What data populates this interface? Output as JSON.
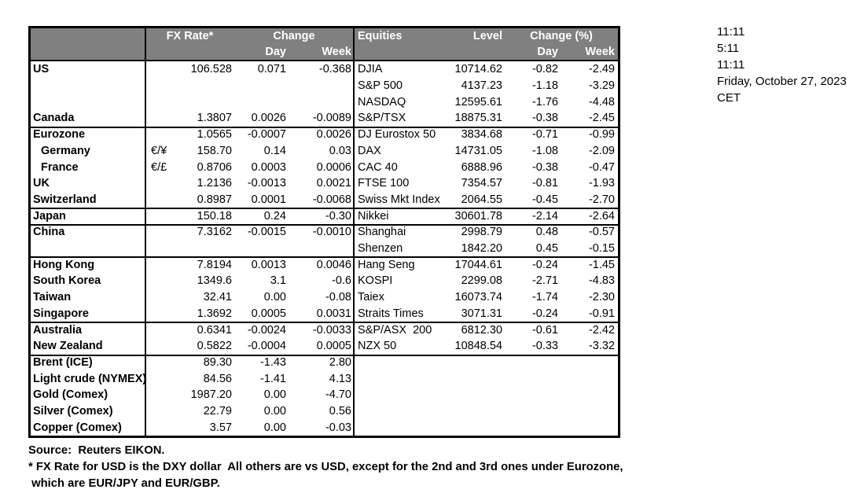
{
  "colors": {
    "header_bg": "#808080",
    "header_text": "#ffffff",
    "border": "#000000",
    "body_bg": "#ffffff"
  },
  "header": {
    "fx_rate": "FX Rate*",
    "change": "Change",
    "day": "Day",
    "week": "Week",
    "equities": "Equities",
    "level": "Level",
    "change_pct": "Change (%)"
  },
  "section_breaks": [
    4,
    9,
    10,
    12,
    16,
    18
  ],
  "rows": [
    {
      "label": "US",
      "indent": false,
      "pair": "",
      "fx": "106.528",
      "day": "0.071",
      "week": "-0.368",
      "equity": "DJIA",
      "level": "10714.62",
      "eq_day": "-0.82",
      "eq_week": "-2.49"
    },
    {
      "label": "",
      "indent": false,
      "pair": "",
      "fx": "",
      "day": "",
      "week": "",
      "equity": "S&P 500",
      "level": "4137.23",
      "eq_day": "-1.18",
      "eq_week": "-3.29"
    },
    {
      "label": "",
      "indent": false,
      "pair": "",
      "fx": "",
      "day": "",
      "week": "",
      "equity": "NASDAQ",
      "level": "12595.61",
      "eq_day": "-1.76",
      "eq_week": "-4.48"
    },
    {
      "label": "Canada",
      "indent": false,
      "pair": "",
      "fx": "1.3807",
      "day": "0.0026",
      "week": "-0.0089",
      "equity": "S&P/TSX",
      "level": "18875.31",
      "eq_day": "-0.38",
      "eq_week": "-2.45"
    },
    {
      "label": "Eurozone",
      "indent": false,
      "pair": "",
      "fx": "1.0565",
      "day": "-0.0007",
      "week": "0.0026",
      "equity": "DJ Eurostox 50",
      "level": "3834.68",
      "eq_day": "-0.71",
      "eq_week": "-0.99"
    },
    {
      "label": "Germany",
      "indent": true,
      "pair": "€/¥",
      "fx": "158.70",
      "day": "0.14",
      "week": "0.03",
      "equity": "DAX",
      "level": "14731.05",
      "eq_day": "-1.08",
      "eq_week": "-2.09"
    },
    {
      "label": "France",
      "indent": true,
      "pair": "€/£",
      "fx": "0.8706",
      "day": "0.0003",
      "week": "0.0006",
      "equity": "CAC 40",
      "level": "6888.96",
      "eq_day": "-0.38",
      "eq_week": "-0.47"
    },
    {
      "label": "UK",
      "indent": false,
      "pair": "",
      "fx": "1.2136",
      "day": "-0.0013",
      "week": "0.0021",
      "equity": "FTSE 100",
      "level": "7354.57",
      "eq_day": "-0.81",
      "eq_week": "-1.93"
    },
    {
      "label": "Switzerland",
      "indent": false,
      "pair": "",
      "fx": "0.8987",
      "day": "0.0001",
      "week": "-0.0068",
      "equity": "Swiss Mkt Index",
      "level": "2064.55",
      "eq_day": "-0.45",
      "eq_week": "-2.70"
    },
    {
      "label": "Japan",
      "indent": false,
      "pair": "",
      "fx": "150.18",
      "day": "0.24",
      "week": "-0.30",
      "equity": "Nikkei",
      "level": "30601.78",
      "eq_day": "-2.14",
      "eq_week": "-2.64"
    },
    {
      "label": "China",
      "indent": false,
      "pair": "",
      "fx": "7.3162",
      "day": "-0.0015",
      "week": "-0.0010",
      "equity": "Shanghai",
      "level": "2998.79",
      "eq_day": "0.48",
      "eq_week": "-0.57"
    },
    {
      "label": "",
      "indent": false,
      "pair": "",
      "fx": "",
      "day": "",
      "week": "",
      "equity": "Shenzen",
      "level": "1842.20",
      "eq_day": "0.45",
      "eq_week": "-0.15"
    },
    {
      "label": "Hong Kong",
      "indent": false,
      "pair": "",
      "fx": "7.8194",
      "day": "0.0013",
      "week": "0.0046",
      "equity": "Hang Seng",
      "level": "17044.61",
      "eq_day": "-0.24",
      "eq_week": "-1.45"
    },
    {
      "label": "South Korea",
      "indent": false,
      "pair": "",
      "fx": "1349.6",
      "day": "3.1",
      "week": "-0.6",
      "equity": "KOSPI",
      "level": "2299.08",
      "eq_day": "-2.71",
      "eq_week": "-4.83"
    },
    {
      "label": "Taiwan",
      "indent": false,
      "pair": "",
      "fx": "32.41",
      "day": "0.00",
      "week": "-0.08",
      "equity": "Taiex",
      "level": "16073.74",
      "eq_day": "-1.74",
      "eq_week": "-2.30"
    },
    {
      "label": "Singapore",
      "indent": false,
      "pair": "",
      "fx": "1.3692",
      "day": "0.0005",
      "week": "0.0031",
      "equity": "Straits Times",
      "level": "3071.31",
      "eq_day": "-0.24",
      "eq_week": "-0.91"
    },
    {
      "label": "Australia",
      "indent": false,
      "pair": "",
      "fx": "0.6341",
      "day": "-0.0024",
      "week": "-0.0033",
      "equity": "S&P/ASX  200",
      "level": "6812.30",
      "eq_day": "-0.61",
      "eq_week": "-2.42"
    },
    {
      "label": "New Zealand",
      "indent": false,
      "pair": "",
      "fx": "0.5822",
      "day": "-0.0004",
      "week": "0.0005",
      "equity": "NZX 50",
      "level": "10848.54",
      "eq_day": "-0.33",
      "eq_week": "-3.32"
    },
    {
      "label": "Brent (ICE)",
      "indent": false,
      "pair": "",
      "fx": "89.30",
      "day": "-1.43",
      "week": "2.80",
      "equity": "",
      "level": "",
      "eq_day": "",
      "eq_week": ""
    },
    {
      "label": "Light crude (NYMEX)",
      "indent": false,
      "pair": "",
      "fx": "84.56",
      "day": "-1.41",
      "week": "4.13",
      "equity": "",
      "level": "",
      "eq_day": "",
      "eq_week": ""
    },
    {
      "label": "Gold (Comex)",
      "indent": false,
      "pair": "",
      "fx": "1987.20",
      "day": "0.00",
      "week": "-4.70",
      "equity": "",
      "level": "",
      "eq_day": "",
      "eq_week": ""
    },
    {
      "label": "Silver (Comex)",
      "indent": false,
      "pair": "",
      "fx": "22.79",
      "day": "0.00",
      "week": "0.56",
      "equity": "",
      "level": "",
      "eq_day": "",
      "eq_week": ""
    },
    {
      "label": "Copper (Comex)",
      "indent": false,
      "pair": "",
      "fx": "3.57",
      "day": "0.00",
      "week": "-0.03",
      "equity": "",
      "level": "",
      "eq_day": "",
      "eq_week": ""
    }
  ],
  "side_panel": {
    "lines": [
      "11:11",
      "5:11",
      "11:11",
      "Friday, October 27, 2023",
      "CET"
    ]
  },
  "footer": {
    "lines": [
      "Source:  Reuters EIKON.",
      "* FX Rate for USD is the DXY dollar  All others are vs USD, except for the 2nd and 3rd ones under Eurozone,",
      " which are EUR/JPY and EUR/GBP."
    ]
  }
}
